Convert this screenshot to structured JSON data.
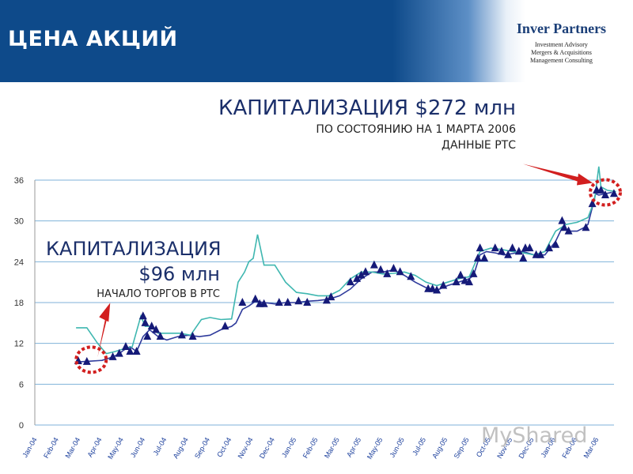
{
  "header": {
    "title": "ЦЕНА АКЦИЙ",
    "logo_name": "Inver Partners",
    "logo_lines": [
      "Investment Advisory",
      "Mergers & Acquisitions",
      "Management Consulting"
    ]
  },
  "annotations": {
    "cap_main": "КАПИТАЛИЗАЦИЯ $272 млн",
    "cap_main_sub1": "ПО СОСТОЯНИЮ НА 1 МАРТА 2006",
    "cap_main_sub2": "ДАННЫЕ РТС",
    "cap_start_1": "КАПИТАЛИЗАЦИЯ",
    "cap_start_2": "$96 млн",
    "cap_start_3": "НАЧАЛО ТОРГОВ В РТС"
  },
  "watermark": "MyShared",
  "colors": {
    "header": "#0e4a8a",
    "grid": "#7fb2da",
    "line1": "#2f3b9c",
    "line2": "#3fb7b0",
    "markers": "#151a78",
    "highlight": "#d21f1f"
  },
  "chart_data": {
    "type": "line",
    "title": "",
    "xlabel": "",
    "ylabel": "",
    "ylim": [
      0,
      36
    ],
    "yticks": [
      0,
      6,
      12,
      18,
      24,
      30,
      36
    ],
    "grid": true,
    "x_labels": [
      "Jan-04",
      "Feb-04",
      "Mar-04",
      "Apr-04",
      "May-04",
      "Jun-04",
      "Jul-04",
      "Aug-04",
      "Sep-04",
      "Oct-04",
      "Nov-04",
      "Dec-04",
      "Jan-05",
      "Feb-05",
      "Mar-05",
      "Apr-05",
      "May-05",
      "Jun-05",
      "Jul-05",
      "Aug-05",
      "Sep-05",
      "Oct-05",
      "Nov-05",
      "Dec-05",
      "Jan-06",
      "Feb-06",
      "Mar-06"
    ],
    "series": [
      {
        "points": [
          [
            1.8,
            9.4
          ],
          [
            2.0,
            9.3
          ],
          [
            2.5,
            9.4
          ],
          [
            3.0,
            9.5
          ],
          [
            3.5,
            10.0
          ],
          [
            3.8,
            10.5
          ],
          [
            4.0,
            11.0
          ],
          [
            4.3,
            11.5
          ],
          [
            4.6,
            10.8
          ],
          [
            4.9,
            13.0
          ],
          [
            5.2,
            14.0
          ],
          [
            5.6,
            13.0
          ],
          [
            6.0,
            12.5
          ],
          [
            6.5,
            13.0
          ],
          [
            7.0,
            13.2
          ],
          [
            7.5,
            13.0
          ],
          [
            8.0,
            13.2
          ],
          [
            8.5,
            14.0
          ],
          [
            9.0,
            14.5
          ],
          [
            9.2,
            15.0
          ],
          [
            9.5,
            17.0
          ],
          [
            9.8,
            17.5
          ],
          [
            10.1,
            18.2
          ],
          [
            10.5,
            18.0
          ],
          [
            11.0,
            17.8
          ],
          [
            11.5,
            18.0
          ],
          [
            12.0,
            18.0
          ],
          [
            12.5,
            18.2
          ],
          [
            13.0,
            18.3
          ],
          [
            13.5,
            18.5
          ],
          [
            14.0,
            19.0
          ],
          [
            14.5,
            20.0
          ],
          [
            15.0,
            21.5
          ],
          [
            15.5,
            22.5
          ],
          [
            16.0,
            22.5
          ],
          [
            16.5,
            22.8
          ],
          [
            17.0,
            22.0
          ],
          [
            17.5,
            21.0
          ],
          [
            18.0,
            20.2
          ],
          [
            18.5,
            19.8
          ],
          [
            19.0,
            20.5
          ],
          [
            19.5,
            21.0
          ],
          [
            20.0,
            21.5
          ],
          [
            20.2,
            22.0
          ],
          [
            20.5,
            25.0
          ],
          [
            20.8,
            25.5
          ],
          [
            21.2,
            25.3
          ],
          [
            21.6,
            25.0
          ],
          [
            22.0,
            25.2
          ],
          [
            22.5,
            25.5
          ],
          [
            23.0,
            25.0
          ],
          [
            23.5,
            25.0
          ],
          [
            24.0,
            27.0
          ],
          [
            24.3,
            29.0
          ],
          [
            24.7,
            28.5
          ],
          [
            25.0,
            28.5
          ],
          [
            25.3,
            29.0
          ],
          [
            25.5,
            29.5
          ],
          [
            25.7,
            32.0
          ],
          [
            25.85,
            34.0
          ],
          [
            26.0,
            33.8
          ],
          [
            26.3,
            34.0
          ],
          [
            26.6,
            34.2
          ]
        ]
      },
      {
        "points": [
          [
            1.8,
            14.3
          ],
          [
            2.3,
            14.3
          ],
          [
            2.8,
            12.0
          ],
          [
            3.2,
            10.5
          ],
          [
            3.6,
            10.8
          ],
          [
            4.0,
            11.2
          ],
          [
            4.4,
            11.5
          ],
          [
            4.8,
            16.0
          ],
          [
            5.0,
            14.5
          ],
          [
            5.3,
            14.5
          ],
          [
            5.6,
            13.5
          ],
          [
            6.1,
            13.5
          ],
          [
            6.6,
            13.5
          ],
          [
            7.1,
            13.2
          ],
          [
            7.6,
            15.5
          ],
          [
            8.0,
            15.8
          ],
          [
            8.5,
            15.5
          ],
          [
            9.0,
            15.6
          ],
          [
            9.3,
            21.0
          ],
          [
            9.6,
            22.5
          ],
          [
            9.8,
            24.0
          ],
          [
            10.0,
            24.5
          ],
          [
            10.2,
            28.0
          ],
          [
            10.5,
            23.5
          ],
          [
            11.0,
            23.5
          ],
          [
            11.5,
            21.0
          ],
          [
            12.0,
            19.5
          ],
          [
            12.5,
            19.3
          ],
          [
            13.0,
            19.0
          ],
          [
            13.5,
            19.0
          ],
          [
            14.0,
            19.8
          ],
          [
            14.5,
            21.5
          ],
          [
            15.0,
            22.5
          ],
          [
            15.5,
            22.5
          ],
          [
            16.0,
            22.2
          ],
          [
            16.5,
            22.3
          ],
          [
            17.0,
            22.5
          ],
          [
            17.5,
            22.0
          ],
          [
            18.0,
            21.0
          ],
          [
            18.5,
            20.5
          ],
          [
            19.0,
            21.0
          ],
          [
            19.5,
            21.5
          ],
          [
            20.0,
            21.8
          ],
          [
            20.3,
            24.0
          ],
          [
            20.5,
            25.5
          ],
          [
            21.0,
            26.0
          ],
          [
            21.5,
            25.8
          ],
          [
            22.0,
            25.5
          ],
          [
            22.5,
            25.3
          ],
          [
            23.0,
            25.0
          ],
          [
            23.5,
            25.5
          ],
          [
            24.0,
            28.5
          ],
          [
            24.5,
            29.5
          ],
          [
            25.0,
            29.8
          ],
          [
            25.5,
            30.5
          ],
          [
            25.8,
            33.0
          ],
          [
            26.0,
            38.0
          ],
          [
            26.1,
            35.0
          ],
          [
            26.4,
            34.5
          ],
          [
            26.8,
            34.3
          ]
        ]
      }
    ],
    "markers": [
      [
        1.9,
        9.4
      ],
      [
        2.3,
        9.3
      ],
      [
        3.5,
        10.0
      ],
      [
        3.8,
        10.5
      ],
      [
        4.1,
        11.5
      ],
      [
        4.3,
        10.8
      ],
      [
        4.6,
        10.8
      ],
      [
        4.9,
        16.0
      ],
      [
        5.0,
        15.0
      ],
      [
        5.1,
        13.0
      ],
      [
        5.3,
        14.5
      ],
      [
        5.5,
        14.0
      ],
      [
        5.7,
        13.0
      ],
      [
        6.7,
        13.2
      ],
      [
        7.2,
        13.0
      ],
      [
        8.7,
        14.5
      ],
      [
        9.5,
        18.0
      ],
      [
        10.1,
        18.5
      ],
      [
        10.3,
        17.8
      ],
      [
        10.5,
        17.8
      ],
      [
        11.2,
        18.0
      ],
      [
        11.6,
        18.0
      ],
      [
        12.1,
        18.2
      ],
      [
        12.5,
        18.0
      ],
      [
        13.4,
        18.3
      ],
      [
        13.6,
        18.8
      ],
      [
        14.5,
        21.0
      ],
      [
        14.8,
        21.5
      ],
      [
        15.0,
        22.0
      ],
      [
        15.2,
        22.5
      ],
      [
        15.6,
        23.5
      ],
      [
        15.9,
        22.8
      ],
      [
        16.2,
        22.2
      ],
      [
        16.5,
        23.0
      ],
      [
        16.8,
        22.5
      ],
      [
        17.3,
        21.8
      ],
      [
        18.1,
        20.0
      ],
      [
        18.3,
        20.0
      ],
      [
        18.5,
        19.8
      ],
      [
        18.8,
        20.5
      ],
      [
        19.4,
        21.0
      ],
      [
        19.6,
        22.0
      ],
      [
        19.8,
        21.2
      ],
      [
        20.0,
        21.0
      ],
      [
        20.2,
        22.2
      ],
      [
        20.4,
        24.5
      ],
      [
        20.5,
        26.0
      ],
      [
        20.7,
        24.5
      ],
      [
        21.2,
        26.0
      ],
      [
        21.5,
        25.5
      ],
      [
        21.8,
        25.0
      ],
      [
        22.0,
        26.0
      ],
      [
        22.3,
        25.5
      ],
      [
        22.5,
        24.5
      ],
      [
        22.6,
        26.0
      ],
      [
        22.8,
        26.0
      ],
      [
        23.1,
        25.0
      ],
      [
        23.3,
        25.0
      ],
      [
        23.7,
        26.0
      ],
      [
        24.0,
        26.5
      ],
      [
        24.3,
        30.0
      ],
      [
        24.4,
        29.0
      ],
      [
        24.6,
        28.5
      ],
      [
        25.4,
        29.0
      ],
      [
        25.7,
        32.5
      ],
      [
        25.9,
        34.5
      ],
      [
        26.1,
        34.5
      ],
      [
        26.3,
        33.8
      ],
      [
        26.7,
        34.0
      ]
    ],
    "highlights": [
      {
        "x": 2.5,
        "y": 9.6
      },
      {
        "x": 26.3,
        "y": 34.2
      }
    ]
  }
}
